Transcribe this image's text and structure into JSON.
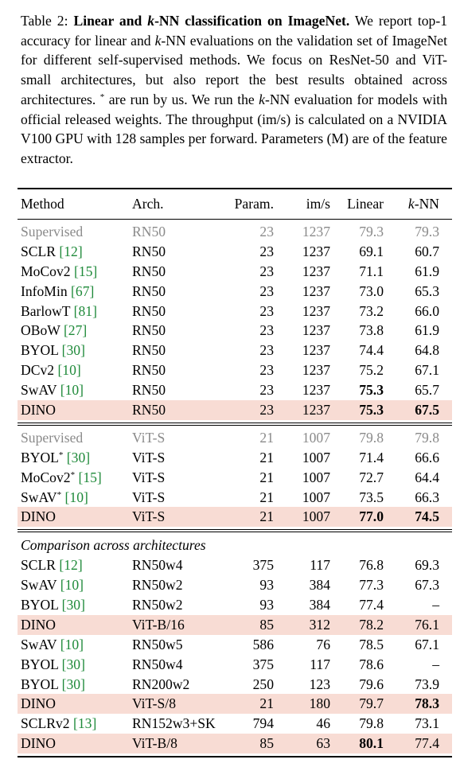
{
  "caption": {
    "label": "Table 2:",
    "title_bold": "Linear and ",
    "title_k": "k",
    "title_rest": "-NN classification on ImageNet.",
    "p1": " We report top-1 accuracy for linear and ",
    "p1_k": "k",
    "p2": "-NN evaluations on the validation set of ImageNet for different self-supervised methods. We focus on ResNet-50 and ViT-small architectures, but also report the best results obtained across architectures. ",
    "star": "*",
    "p3": " are run by us. We run the ",
    "p3_k": "k",
    "p4": "-NN evaluation for models with official released weights. The throughput (im/s) is calculated on a NVIDIA V100 GPU with 128 samples per forward. Parameters (M) are of the feature extractor."
  },
  "header": {
    "method": "Method",
    "arch": "Arch.",
    "param": "Param.",
    "ims": "im/s",
    "linear": "Linear",
    "knn_k": "k",
    "knn_rest": "-NN"
  },
  "group1": [
    {
      "name": "Supervised",
      "cite": "",
      "star": "",
      "arch": "RN50",
      "param": "23",
      "ims": "1237",
      "linear": "79.3",
      "knn": "79.3",
      "gray": true
    },
    {
      "name": "SCLR ",
      "cite": "[12]",
      "star": "",
      "arch": "RN50",
      "param": "23",
      "ims": "1237",
      "linear": "69.1",
      "knn": "60.7"
    },
    {
      "name": "MoCov2 ",
      "cite": "[15]",
      "star": "",
      "arch": "RN50",
      "param": "23",
      "ims": "1237",
      "linear": "71.1",
      "knn": "61.9"
    },
    {
      "name": "InfoMin ",
      "cite": "[67]",
      "star": "",
      "arch": "RN50",
      "param": "23",
      "ims": "1237",
      "linear": "73.0",
      "knn": "65.3"
    },
    {
      "name": "BarlowT ",
      "cite": "[81]",
      "star": "",
      "arch": "RN50",
      "param": "23",
      "ims": "1237",
      "linear": "73.2",
      "knn": "66.0"
    },
    {
      "name": "OBoW ",
      "cite": "[27]",
      "star": "",
      "arch": "RN50",
      "param": "23",
      "ims": "1237",
      "linear": "73.8",
      "knn": "61.9"
    },
    {
      "name": "BYOL ",
      "cite": "[30]",
      "star": "",
      "arch": "RN50",
      "param": "23",
      "ims": "1237",
      "linear": "74.4",
      "knn": "64.8"
    },
    {
      "name": "DCv2 ",
      "cite": "[10]",
      "star": "",
      "arch": "RN50",
      "param": "23",
      "ims": "1237",
      "linear": "75.2",
      "knn": "67.1"
    },
    {
      "name": "SwAV ",
      "cite": "[10]",
      "star": "",
      "arch": "RN50",
      "param": "23",
      "ims": "1237",
      "linear": "75.3",
      "knn": "65.7",
      "bold_linear": true
    },
    {
      "name": "DINO",
      "cite": "",
      "star": "",
      "arch": "RN50",
      "param": "23",
      "ims": "1237",
      "linear": "75.3",
      "knn": "67.5",
      "hl": true,
      "bold_linear": true,
      "bold_knn": true
    }
  ],
  "group2": [
    {
      "name": "Supervised",
      "cite": "",
      "star": "",
      "arch": "ViT-S",
      "param": "21",
      "ims": "1007",
      "linear": "79.8",
      "knn": "79.8",
      "gray": true
    },
    {
      "name": "BYOL",
      "star": "*",
      "cite": " [30]",
      "arch": "ViT-S",
      "param": "21",
      "ims": "1007",
      "linear": "71.4",
      "knn": "66.6"
    },
    {
      "name": "MoCov2",
      "star": "*",
      "cite": " [15]",
      "arch": "ViT-S",
      "param": "21",
      "ims": "1007",
      "linear": "72.7",
      "knn": "64.4"
    },
    {
      "name": "SwAV",
      "star": "*",
      "cite": " [10]",
      "arch": "ViT-S",
      "param": "21",
      "ims": "1007",
      "linear": "73.5",
      "knn": "66.3"
    },
    {
      "name": "DINO",
      "cite": "",
      "star": "",
      "arch": "ViT-S",
      "param": "21",
      "ims": "1007",
      "linear": "77.0",
      "knn": "74.5",
      "hl": true,
      "bold_linear": true,
      "bold_knn": true
    }
  ],
  "group3_title": "Comparison across architectures",
  "group3": [
    {
      "name": "SCLR ",
      "cite": "[12]",
      "star": "",
      "arch": "RN50w4",
      "param": "375",
      "ims": "117",
      "linear": "76.8",
      "knn": "69.3"
    },
    {
      "name": "SwAV ",
      "cite": "[10]",
      "star": "",
      "arch": "RN50w2",
      "param": "93",
      "ims": "384",
      "linear": "77.3",
      "knn": "67.3"
    },
    {
      "name": "BYOL ",
      "cite": "[30]",
      "star": "",
      "arch": "RN50w2",
      "param": "93",
      "ims": "384",
      "linear": "77.4",
      "knn": "–"
    },
    {
      "name": "DINO",
      "cite": "",
      "star": "",
      "arch": "ViT-B/16",
      "param": "85",
      "ims": "312",
      "linear": "78.2",
      "knn": "76.1",
      "hl": true
    },
    {
      "name": "SwAV ",
      "cite": "[10]",
      "star": "",
      "arch": "RN50w5",
      "param": "586",
      "ims": "76",
      "linear": "78.5",
      "knn": "67.1"
    },
    {
      "name": "BYOL ",
      "cite": "[30]",
      "star": "",
      "arch": "RN50w4",
      "param": "375",
      "ims": "117",
      "linear": "78.6",
      "knn": "–"
    },
    {
      "name": "BYOL ",
      "cite": "[30]",
      "star": "",
      "arch": "RN200w2",
      "param": "250",
      "ims": "123",
      "linear": "79.6",
      "knn": "73.9"
    },
    {
      "name": "DINO",
      "cite": "",
      "star": "",
      "arch": "ViT-S/8",
      "param": "21",
      "ims": "180",
      "linear": "79.7",
      "knn": "78.3",
      "hl": true,
      "bold_knn": true
    },
    {
      "name": "SCLRv2 ",
      "cite": "[13]",
      "star": "",
      "arch": "RN152w3+SK",
      "param": "794",
      "ims": "46",
      "linear": "79.8",
      "knn": "73.1"
    },
    {
      "name": "DINO",
      "cite": "",
      "star": "",
      "arch": "ViT-B/8",
      "param": "85",
      "ims": "63",
      "linear": "80.1",
      "knn": "77.4",
      "hl": true,
      "bold_linear": true
    }
  ]
}
